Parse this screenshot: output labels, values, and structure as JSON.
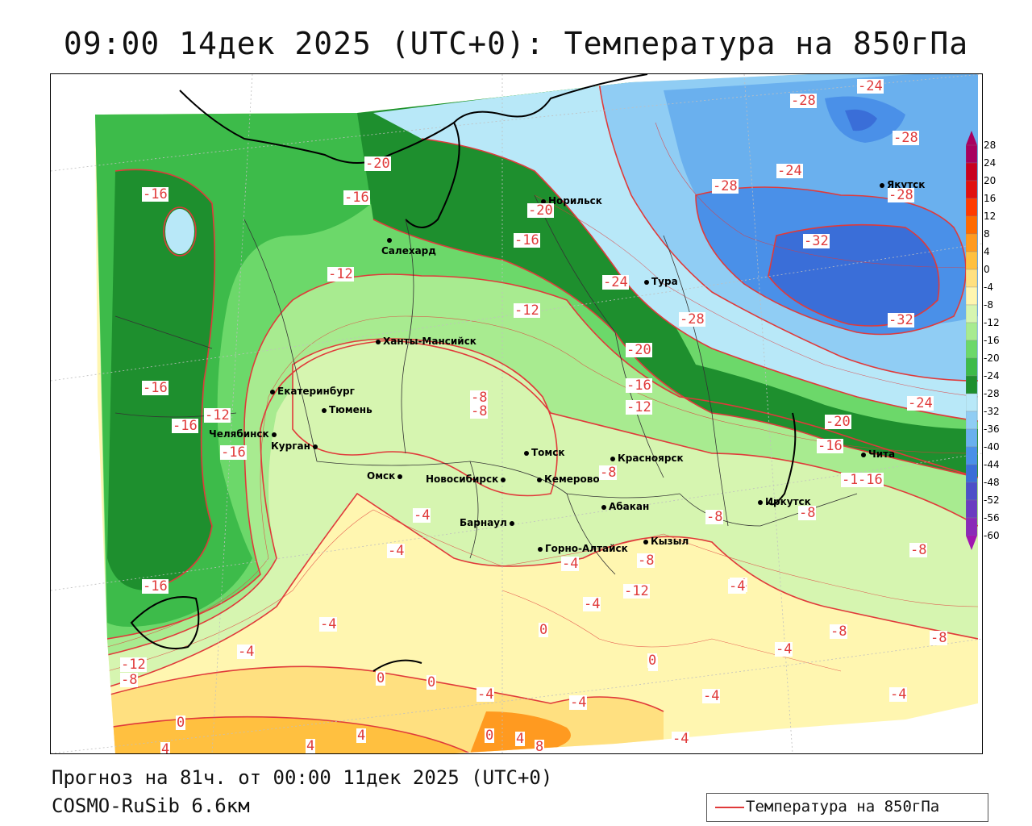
{
  "title": "09:00 14дек 2025 (UTC+0): Температура на 850гПа",
  "footer": {
    "forecast": "Прогноз на 81ч. от 00:00 11дек 2025 (UTC+0)",
    "model": "COSMO-RuSib 6.6км"
  },
  "legend": {
    "line_label": "Температура на 850гПа",
    "line_color": "#e03a3a"
  },
  "colorbar": {
    "ticks": [
      "28",
      "24",
      "20",
      "16",
      "12",
      "8",
      "4",
      "0",
      "-4",
      "-8",
      "-12",
      "-16",
      "-20",
      "-24",
      "-28",
      "-32",
      "-36",
      "-40",
      "-44",
      "-48",
      "-52",
      "-56",
      "-60"
    ],
    "colors": [
      "#a8005e",
      "#c80020",
      "#e01010",
      "#ff3a00",
      "#ff6a00",
      "#ff9a20",
      "#ffc040",
      "#ffe080",
      "#fff6b0",
      "#d6f5b0",
      "#a8eb90",
      "#6cd86a",
      "#3dbb4a",
      "#1e8f2e",
      "#b8e8f8",
      "#90cdf4",
      "#6ab0ee",
      "#4a90e8",
      "#3a6ed8",
      "#4c50c8",
      "#6a3cc0",
      "#8a2ab8",
      "#a016b0"
    ]
  },
  "cities": [
    {
      "name": "Норильск"
    },
    {
      "name": "Якутск"
    },
    {
      "name": "Салехард"
    },
    {
      "name": "Тура"
    },
    {
      "name": "Ханты-Мансийск"
    },
    {
      "name": "Екатеринбург"
    },
    {
      "name": "Тюмень"
    },
    {
      "name": "Челябинск"
    },
    {
      "name": "Курган"
    },
    {
      "name": "Омск"
    },
    {
      "name": "Новосибирск"
    },
    {
      "name": "Томск"
    },
    {
      "name": "Красноярск"
    },
    {
      "name": "Кемерово"
    },
    {
      "name": "Барнаул"
    },
    {
      "name": "Абакан"
    },
    {
      "name": "Горно-Алтайск"
    },
    {
      "name": "Кызыл"
    },
    {
      "name": "Иркутск"
    },
    {
      "name": "Чита"
    }
  ],
  "contour_labels": [
    "-24",
    "-28",
    "-28",
    "-24",
    "-28",
    "-28",
    "-32",
    "-32",
    "-28",
    "-24",
    "-24",
    "-20",
    "-16",
    "-16",
    "-20",
    "-20",
    "-16",
    "-12",
    "-12",
    "-16",
    "-12",
    "-16",
    "-16",
    "-20",
    "-16",
    "-12",
    "-8",
    "-8",
    "-8",
    "-12",
    "-16",
    "-16",
    "-4",
    "-4",
    "-8",
    "-4",
    "-4",
    "0",
    "-4",
    "-8",
    "-8",
    "-12",
    "-16",
    "-12",
    "-8",
    "-4",
    "-4",
    "0",
    "0",
    "-4",
    "0",
    "0",
    "4",
    "4",
    "4",
    "0",
    "4",
    "8",
    "-4",
    "-4",
    "-8",
    "-8",
    "-4",
    "-4",
    "-4",
    "-8",
    "0",
    "-4"
  ]
}
